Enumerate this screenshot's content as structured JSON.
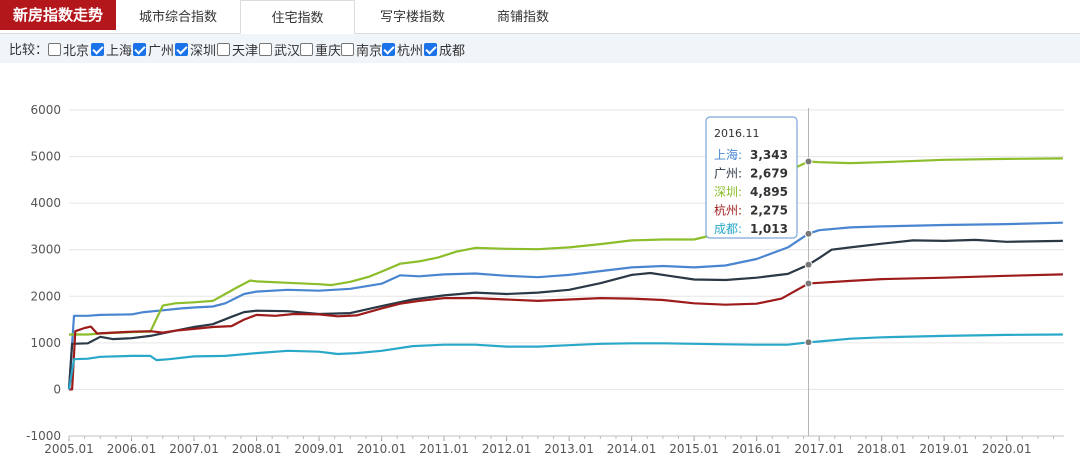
{
  "header": {
    "brand": "新房指数走势",
    "tabs": [
      {
        "label": "城市综合指数",
        "active": false
      },
      {
        "label": "住宅指数",
        "active": true
      },
      {
        "label": "写字楼指数",
        "active": false
      },
      {
        "label": "商铺指数",
        "active": false
      }
    ]
  },
  "filter": {
    "label": "比较：",
    "cities": [
      {
        "name": "北京",
        "checked": false
      },
      {
        "name": "上海",
        "checked": true
      },
      {
        "name": "广州",
        "checked": true
      },
      {
        "name": "深圳",
        "checked": true
      },
      {
        "name": "天津",
        "checked": false
      },
      {
        "name": "武汉",
        "checked": false
      },
      {
        "name": "重庆",
        "checked": false
      },
      {
        "name": "南京",
        "checked": false
      },
      {
        "name": "杭州",
        "checked": true
      },
      {
        "name": "成都",
        "checked": true
      }
    ]
  },
  "chart_data": {
    "type": "line",
    "ylim": [
      -1000,
      6000
    ],
    "yticks": [
      -1000,
      0,
      1000,
      2000,
      3000,
      4000,
      5000,
      6000
    ],
    "xlim": [
      2005.0,
      2020.917
    ],
    "xticks": [
      "2005.01",
      "2006.01",
      "2007.01",
      "2008.01",
      "2009.01",
      "2010.01",
      "2011.01",
      "2012.01",
      "2013.01",
      "2014.01",
      "2015.01",
      "2016.01",
      "2017.01",
      "2018.01",
      "2019.01",
      "2020.01"
    ],
    "grid": "horizontal",
    "series": [
      {
        "name": "上海",
        "color": "#4a86d0",
        "points": [
          [
            2005.0,
            0
          ],
          [
            2005.08,
            1580
          ],
          [
            2005.3,
            1580
          ],
          [
            2005.5,
            1600
          ],
          [
            2006.0,
            1610
          ],
          [
            2006.2,
            1660
          ],
          [
            2006.5,
            1700
          ],
          [
            2006.8,
            1740
          ],
          [
            2007.0,
            1760
          ],
          [
            2007.3,
            1780
          ],
          [
            2007.5,
            1850
          ],
          [
            2007.8,
            2050
          ],
          [
            2008.0,
            2100
          ],
          [
            2008.5,
            2140
          ],
          [
            2009.0,
            2120
          ],
          [
            2009.5,
            2160
          ],
          [
            2010.0,
            2270
          ],
          [
            2010.3,
            2450
          ],
          [
            2010.6,
            2430
          ],
          [
            2011.0,
            2470
          ],
          [
            2011.5,
            2490
          ],
          [
            2012.0,
            2440
          ],
          [
            2012.5,
            2410
          ],
          [
            2013.0,
            2460
          ],
          [
            2013.5,
            2540
          ],
          [
            2014.0,
            2620
          ],
          [
            2014.5,
            2650
          ],
          [
            2015.0,
            2620
          ],
          [
            2015.5,
            2660
          ],
          [
            2016.0,
            2800
          ],
          [
            2016.5,
            3050
          ],
          [
            2016.83,
            3343
          ],
          [
            2017.0,
            3420
          ],
          [
            2017.5,
            3480
          ],
          [
            2018.0,
            3500
          ],
          [
            2019.0,
            3530
          ],
          [
            2020.0,
            3550
          ],
          [
            2020.9,
            3580
          ]
        ]
      },
      {
        "name": "广州",
        "color": "#2b3845",
        "points": [
          [
            2005.0,
            0
          ],
          [
            2005.05,
            980
          ],
          [
            2005.3,
            990
          ],
          [
            2005.5,
            1130
          ],
          [
            2005.7,
            1080
          ],
          [
            2006.0,
            1100
          ],
          [
            2006.3,
            1150
          ],
          [
            2006.7,
            1260
          ],
          [
            2007.0,
            1340
          ],
          [
            2007.3,
            1400
          ],
          [
            2007.6,
            1560
          ],
          [
            2007.8,
            1660
          ],
          [
            2008.0,
            1690
          ],
          [
            2008.5,
            1680
          ],
          [
            2009.0,
            1620
          ],
          [
            2009.5,
            1640
          ],
          [
            2010.0,
            1790
          ],
          [
            2010.5,
            1930
          ],
          [
            2011.0,
            2020
          ],
          [
            2011.5,
            2080
          ],
          [
            2012.0,
            2050
          ],
          [
            2012.5,
            2080
          ],
          [
            2013.0,
            2140
          ],
          [
            2013.5,
            2280
          ],
          [
            2014.0,
            2460
          ],
          [
            2014.3,
            2500
          ],
          [
            2014.6,
            2440
          ],
          [
            2015.0,
            2360
          ],
          [
            2015.5,
            2350
          ],
          [
            2016.0,
            2400
          ],
          [
            2016.5,
            2480
          ],
          [
            2016.83,
            2679
          ],
          [
            2017.0,
            2820
          ],
          [
            2017.2,
            3000
          ],
          [
            2017.5,
            3050
          ],
          [
            2018.0,
            3130
          ],
          [
            2018.5,
            3200
          ],
          [
            2019.0,
            3190
          ],
          [
            2019.5,
            3210
          ],
          [
            2020.0,
            3170
          ],
          [
            2020.9,
            3190
          ]
        ]
      },
      {
        "name": "深圳",
        "color": "#8cbd2a",
        "points": [
          [
            2005.0,
            1180
          ],
          [
            2005.3,
            1180
          ],
          [
            2005.5,
            1200
          ],
          [
            2006.0,
            1230
          ],
          [
            2006.3,
            1240
          ],
          [
            2006.5,
            1800
          ],
          [
            2006.7,
            1850
          ],
          [
            2007.0,
            1870
          ],
          [
            2007.3,
            1900
          ],
          [
            2007.7,
            2200
          ],
          [
            2007.9,
            2340
          ],
          [
            2008.0,
            2320
          ],
          [
            2008.5,
            2290
          ],
          [
            2009.0,
            2260
          ],
          [
            2009.2,
            2240
          ],
          [
            2009.5,
            2310
          ],
          [
            2009.8,
            2420
          ],
          [
            2010.0,
            2530
          ],
          [
            2010.3,
            2700
          ],
          [
            2010.6,
            2750
          ],
          [
            2010.9,
            2830
          ],
          [
            2011.2,
            2960
          ],
          [
            2011.5,
            3040
          ],
          [
            2012.0,
            3020
          ],
          [
            2012.5,
            3010
          ],
          [
            2013.0,
            3050
          ],
          [
            2013.5,
            3120
          ],
          [
            2014.0,
            3200
          ],
          [
            2014.5,
            3220
          ],
          [
            2015.0,
            3220
          ],
          [
            2015.5,
            3380
          ],
          [
            2016.0,
            3800
          ],
          [
            2016.3,
            4300
          ],
          [
            2016.6,
            4750
          ],
          [
            2016.83,
            4895
          ],
          [
            2017.0,
            4880
          ],
          [
            2017.5,
            4860
          ],
          [
            2018.0,
            4880
          ],
          [
            2019.0,
            4930
          ],
          [
            2020.0,
            4950
          ],
          [
            2020.9,
            4960
          ]
        ]
      },
      {
        "name": "杭州",
        "color": "#9d1b1b",
        "points": [
          [
            2005.0,
            0
          ],
          [
            2005.05,
            0
          ],
          [
            2005.1,
            1250
          ],
          [
            2005.25,
            1320
          ],
          [
            2005.35,
            1350
          ],
          [
            2005.45,
            1200
          ],
          [
            2005.7,
            1220
          ],
          [
            2006.0,
            1240
          ],
          [
            2006.3,
            1250
          ],
          [
            2006.5,
            1220
          ],
          [
            2006.7,
            1260
          ],
          [
            2007.0,
            1300
          ],
          [
            2007.3,
            1340
          ],
          [
            2007.6,
            1360
          ],
          [
            2007.8,
            1500
          ],
          [
            2008.0,
            1600
          ],
          [
            2008.3,
            1580
          ],
          [
            2008.6,
            1620
          ],
          [
            2009.0,
            1610
          ],
          [
            2009.3,
            1570
          ],
          [
            2009.6,
            1590
          ],
          [
            2010.0,
            1740
          ],
          [
            2010.3,
            1840
          ],
          [
            2010.6,
            1900
          ],
          [
            2011.0,
            1960
          ],
          [
            2011.5,
            1960
          ],
          [
            2012.0,
            1930
          ],
          [
            2012.5,
            1900
          ],
          [
            2013.0,
            1930
          ],
          [
            2013.5,
            1960
          ],
          [
            2014.0,
            1950
          ],
          [
            2014.5,
            1920
          ],
          [
            2015.0,
            1850
          ],
          [
            2015.5,
            1820
          ],
          [
            2016.0,
            1840
          ],
          [
            2016.4,
            1950
          ],
          [
            2016.6,
            2100
          ],
          [
            2016.83,
            2275
          ],
          [
            2017.0,
            2290
          ],
          [
            2017.5,
            2330
          ],
          [
            2018.0,
            2370
          ],
          [
            2019.0,
            2400
          ],
          [
            2020.0,
            2440
          ],
          [
            2020.9,
            2470
          ]
        ]
      },
      {
        "name": "成都",
        "color": "#2aa8c9",
        "points": [
          [
            2005.0,
            0
          ],
          [
            2005.08,
            650
          ],
          [
            2005.3,
            660
          ],
          [
            2005.5,
            700
          ],
          [
            2006.0,
            720
          ],
          [
            2006.3,
            720
          ],
          [
            2006.4,
            630
          ],
          [
            2006.6,
            650
          ],
          [
            2007.0,
            710
          ],
          [
            2007.5,
            720
          ],
          [
            2008.0,
            780
          ],
          [
            2008.5,
            830
          ],
          [
            2009.0,
            810
          ],
          [
            2009.3,
            760
          ],
          [
            2009.6,
            780
          ],
          [
            2010.0,
            830
          ],
          [
            2010.5,
            930
          ],
          [
            2011.0,
            960
          ],
          [
            2011.5,
            960
          ],
          [
            2012.0,
            920
          ],
          [
            2012.5,
            920
          ],
          [
            2013.0,
            950
          ],
          [
            2013.5,
            980
          ],
          [
            2014.0,
            990
          ],
          [
            2014.5,
            990
          ],
          [
            2015.0,
            980
          ],
          [
            2015.5,
            970
          ],
          [
            2016.0,
            960
          ],
          [
            2016.5,
            960
          ],
          [
            2016.83,
            1013
          ],
          [
            2017.0,
            1030
          ],
          [
            2017.5,
            1090
          ],
          [
            2018.0,
            1120
          ],
          [
            2019.0,
            1150
          ],
          [
            2020.0,
            1170
          ],
          [
            2020.9,
            1180
          ]
        ]
      }
    ],
    "tooltip": {
      "date": "2016.11",
      "x": 2016.83,
      "rows": [
        {
          "name": "上海",
          "value": "3,343",
          "color": "#4a86d0"
        },
        {
          "name": "广州",
          "value": "2,679",
          "color": "#2b3845"
        },
        {
          "name": "深圳",
          "value": "4,895",
          "color": "#8cbd2a"
        },
        {
          "name": "杭州",
          "value": "2,275",
          "color": "#9d1b1b"
        },
        {
          "name": "成都",
          "value": "1,013",
          "color": "#2aa8c9"
        }
      ]
    }
  }
}
